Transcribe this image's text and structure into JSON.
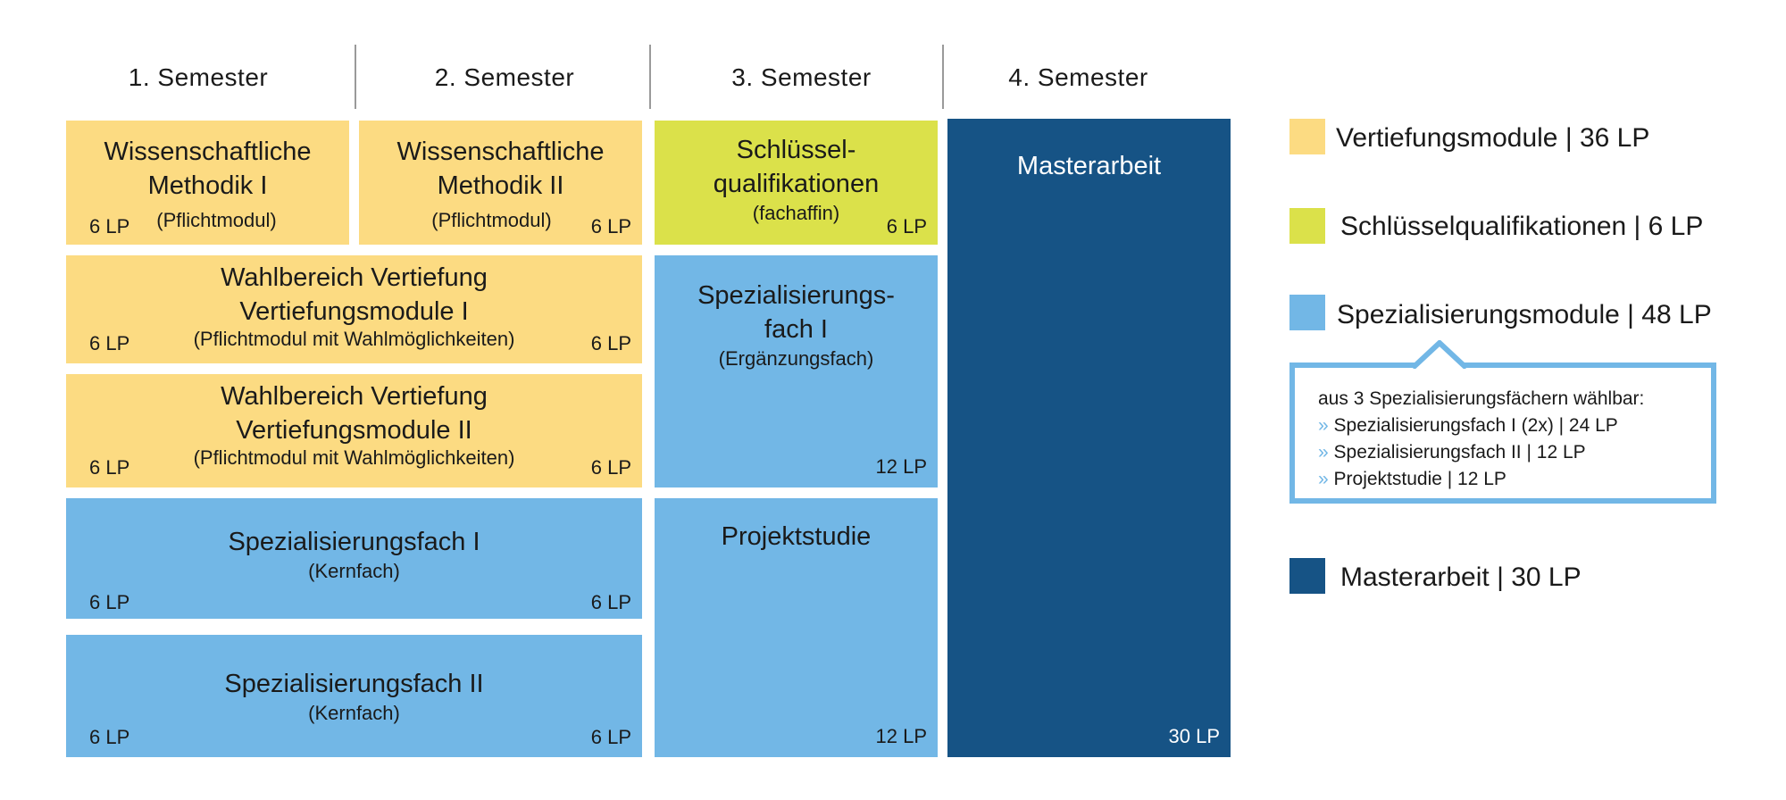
{
  "semesters": [
    "1. Semester",
    "2. Semester",
    "3. Semester",
    "4. Semester"
  ],
  "modules": {
    "wm1": {
      "title1": "Wissenschaftliche",
      "title2": "Methodik I",
      "sub": "(Pflichtmodul)",
      "lp": "6 LP"
    },
    "wm2": {
      "title1": "Wissenschaftliche",
      "title2": "Methodik II",
      "sub": "(Pflichtmodul)",
      "lp": "6 LP"
    },
    "sq": {
      "title1": "Schlüssel-",
      "title2": "qualifikationen",
      "sub": "(fachaffin)",
      "lp": "6 LP"
    },
    "master": {
      "title": "Masterarbeit",
      "lp": "30 LP"
    },
    "wv1": {
      "title1": "Wahlbereich Vertiefung",
      "title2": "Vertiefungsmodule I",
      "sub": "(Pflichtmodul mit Wahlmöglichkeiten)",
      "lp_left": "6 LP",
      "lp_right": "6 LP"
    },
    "wv2": {
      "title1": "Wahlbereich Vertiefung",
      "title2": "Vertiefungsmodule II",
      "sub": "(Pflichtmodul mit Wahlmöglichkeiten)",
      "lp_left": "6 LP",
      "lp_right": "6 LP"
    },
    "sf1_s3": {
      "title1": "Spezialisierungs-",
      "title2": "fach I",
      "sub": "(Ergänzungsfach)",
      "lp": "12 LP"
    },
    "sf1": {
      "title": "Spezialisierungsfach I",
      "sub": "(Kernfach)",
      "lp_left": "6 LP",
      "lp_right": "6 LP"
    },
    "ps": {
      "title": "Projektstudie",
      "lp": "12 LP"
    },
    "sf2": {
      "title": "Spezialisierungsfach II",
      "sub": "(Kernfach)",
      "lp_left": "6 LP",
      "lp_right": "6 LP"
    }
  },
  "legend": [
    {
      "label": "Vertiefungsmodule | 36 LP",
      "color": "#fcdb82"
    },
    {
      "label": "Schlüsselqualifikationen | 6 LP",
      "color": "#dbe14a"
    },
    {
      "label": "Spezialisierungsmodule | 48 LP",
      "color": "#72b7e6"
    },
    {
      "label": "Masterarbeit | 30 LP",
      "color": "#165385"
    }
  ],
  "callout": {
    "heading": "aus 3 Spezialisierungsfächern wählbar:",
    "bullet": "»",
    "items": [
      "Spezialisierungsfach I (2x) | 24 LP",
      "Spezialisierungsfach II | 12 LP",
      "Projektstudie | 12 LP"
    ]
  }
}
